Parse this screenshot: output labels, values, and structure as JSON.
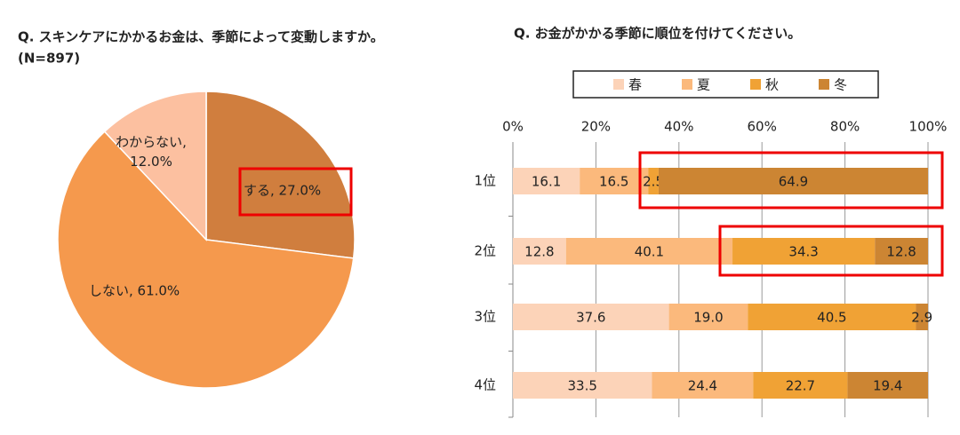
{
  "chart_data": [
    {
      "type": "pie",
      "title": "Q. スキンケアにかかるお金は、季節によって変動しますか。",
      "subtitle": "(N=897)",
      "values": [
        27.0,
        61.0,
        12.0
      ],
      "value_labels": [
        "する, 27.0%",
        "しない, 61.0%",
        "わからない, 12.0%"
      ],
      "colors": [
        "#d07e3e",
        "#f5994d",
        "#fcc0a0"
      ]
    },
    {
      "type": "stacked_barh",
      "title": "Q. お金がかかる季節に順位を付けてください。",
      "categories": [
        "1位",
        "2位",
        "3位",
        "4位"
      ],
      "series": [
        {
          "name": "春",
          "color": "#fcd3b8",
          "values": [
            16.1,
            12.8,
            37.6,
            33.5
          ],
          "value_labels": [
            "16.1",
            "12.8",
            "37.6",
            "33.5"
          ]
        },
        {
          "name": "夏",
          "color": "#fbb97c",
          "values": [
            16.5,
            40.1,
            19.0,
            24.4
          ],
          "value_labels": [
            "16.5",
            "40.1",
            "19.0",
            "24.4"
          ]
        },
        {
          "name": "秋",
          "color": "#f0a235",
          "values": [
            2.5,
            34.3,
            40.5,
            22.7
          ],
          "value_labels": [
            "2.5",
            "34.3",
            "40.5",
            "22.7"
          ]
        },
        {
          "name": "冬",
          "color": "#cc8533",
          "values": [
            64.9,
            12.8,
            2.9,
            19.4
          ],
          "value_labels": [
            "64.9",
            "12.8",
            "2.9",
            "19.4"
          ]
        }
      ],
      "xlim": [
        0,
        100
      ],
      "xticks": [
        {
          "value": 0,
          "label": "0%"
        },
        {
          "value": 20,
          "label": "20%"
        },
        {
          "value": 40,
          "label": "40%"
        },
        {
          "value": 60,
          "label": "60%"
        },
        {
          "value": 80,
          "label": "80%"
        },
        {
          "value": 100,
          "label": "100%"
        }
      ],
      "grid": true,
      "legend": "top"
    }
  ]
}
